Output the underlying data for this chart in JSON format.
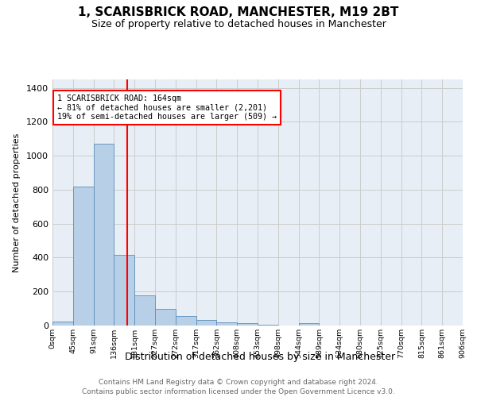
{
  "title": "1, SCARISBRICK ROAD, MANCHESTER, M19 2BT",
  "subtitle": "Size of property relative to detached houses in Manchester",
  "xlabel": "Distribution of detached houses by size in Manchester",
  "ylabel": "Number of detached properties",
  "footer_line1": "Contains HM Land Registry data © Crown copyright and database right 2024.",
  "footer_line2": "Contains public sector information licensed under the Open Government Licence v3.0.",
  "bin_labels": [
    "0sqm",
    "45sqm",
    "91sqm",
    "136sqm",
    "181sqm",
    "227sqm",
    "272sqm",
    "317sqm",
    "362sqm",
    "408sqm",
    "453sqm",
    "498sqm",
    "544sqm",
    "589sqm",
    "634sqm",
    "680sqm",
    "725sqm",
    "770sqm",
    "815sqm",
    "861sqm",
    "906sqm"
  ],
  "bar_heights": [
    25,
    820,
    1070,
    415,
    180,
    100,
    58,
    35,
    20,
    12,
    5,
    0,
    12,
    0,
    0,
    0,
    0,
    0,
    0,
    0
  ],
  "bar_color": "#b8cfe8",
  "bar_edge_color": "#5b8db8",
  "vline_x": 3.65,
  "annotation_text_line1": "1 SCARISBRICK ROAD: 164sqm",
  "annotation_text_line2": "← 81% of detached houses are smaller (2,201)",
  "annotation_text_line3": "19% of semi-detached houses are larger (509) →",
  "annotation_box_color": "white",
  "annotation_box_edge_color": "red",
  "vline_color": "red",
  "ylim": [
    0,
    1450
  ],
  "yticks": [
    0,
    200,
    400,
    600,
    800,
    1000,
    1200,
    1400
  ],
  "grid_color": "#cccccc",
  "bg_color": "#e8eef5"
}
